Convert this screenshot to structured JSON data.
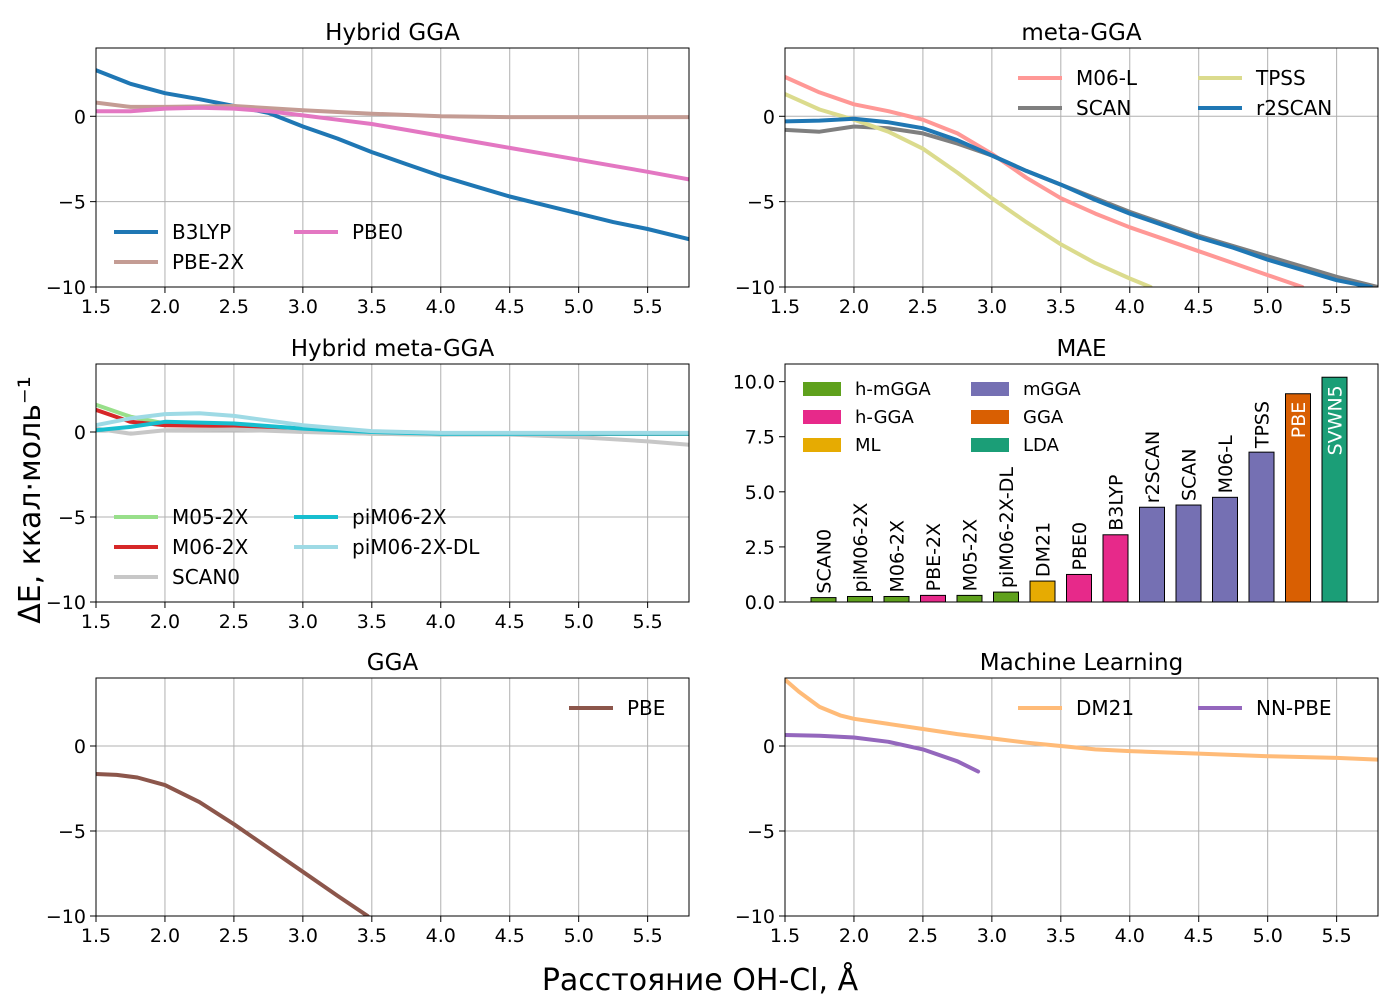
{
  "figure": {
    "xlabel": "Расстояние OH-Cl, Å",
    "ylabel": "ΔE, ккал·моль⁻¹"
  },
  "chart_data": [
    {
      "type": "line",
      "title": "Hybrid GGA",
      "xlim": [
        1.5,
        5.8
      ],
      "ylim": [
        -10,
        4
      ],
      "xticks": [
        "1.5",
        "2.0",
        "2.5",
        "3.0",
        "3.5",
        "4.0",
        "4.5",
        "5.0",
        "5.5"
      ],
      "yticks": [
        "−10",
        "−5",
        "0"
      ],
      "grid": true,
      "legend": {
        "placement": "lower-left",
        "columns": 2
      },
      "series": [
        {
          "name": "B3LYP",
          "color": "#1f77b4",
          "x": [
            1.5,
            1.75,
            2.0,
            2.25,
            2.5,
            2.75,
            3.0,
            3.25,
            3.5,
            3.75,
            4.0,
            4.25,
            4.5,
            4.75,
            5.0,
            5.25,
            5.5,
            5.8
          ],
          "y": [
            2.7,
            1.9,
            1.35,
            1.0,
            0.6,
            0.2,
            -0.6,
            -1.3,
            -2.1,
            -2.8,
            -3.5,
            -4.1,
            -4.7,
            -5.2,
            -5.7,
            -6.2,
            -6.6,
            -7.2
          ]
        },
        {
          "name": "PBE-2X",
          "color": "#c49c94",
          "x": [
            1.5,
            1.75,
            2.0,
            2.5,
            3.0,
            3.5,
            4.0,
            4.5,
            5.0,
            5.5,
            5.8
          ],
          "y": [
            0.8,
            0.55,
            0.55,
            0.6,
            0.35,
            0.15,
            0.0,
            -0.05,
            -0.05,
            -0.05,
            -0.05
          ]
        },
        {
          "name": "PBE0",
          "color": "#e377c2",
          "x": [
            1.5,
            1.75,
            2.0,
            2.25,
            2.5,
            2.75,
            3.0,
            3.25,
            3.5,
            3.75,
            4.0,
            4.25,
            4.5,
            4.75,
            5.0,
            5.25,
            5.5,
            5.8
          ],
          "y": [
            0.3,
            0.3,
            0.45,
            0.5,
            0.45,
            0.3,
            0.05,
            -0.2,
            -0.45,
            -0.8,
            -1.15,
            -1.5,
            -1.85,
            -2.2,
            -2.55,
            -2.9,
            -3.25,
            -3.7
          ]
        }
      ]
    },
    {
      "type": "line",
      "title": "meta-GGA",
      "xlim": [
        1.5,
        5.8
      ],
      "ylim": [
        -10,
        4
      ],
      "xticks": [
        "1.5",
        "2.0",
        "2.5",
        "3.0",
        "3.5",
        "4.0",
        "4.5",
        "5.0",
        "5.5"
      ],
      "yticks": [
        "−10",
        "−5",
        "0"
      ],
      "grid": true,
      "legend": {
        "placement": "top-right",
        "columns": 2
      },
      "series": [
        {
          "name": "M06-L",
          "color": "#ff9896",
          "x": [
            1.5,
            1.75,
            2.0,
            2.25,
            2.5,
            2.75,
            3.0,
            3.25,
            3.5,
            3.75,
            4.0,
            4.25,
            4.5,
            4.75,
            5.0,
            5.25
          ],
          "y": [
            2.3,
            1.4,
            0.7,
            0.3,
            -0.2,
            -1.0,
            -2.2,
            -3.6,
            -4.8,
            -5.7,
            -6.5,
            -7.2,
            -7.9,
            -8.6,
            -9.3,
            -10.0
          ]
        },
        {
          "name": "SCAN",
          "color": "#7f7f7f",
          "x": [
            1.5,
            1.75,
            2.0,
            2.25,
            2.5,
            2.75,
            3.0,
            3.25,
            3.5,
            3.75,
            4.0,
            4.25,
            4.5,
            4.75,
            5.0,
            5.25,
            5.5,
            5.8
          ],
          "y": [
            -0.8,
            -0.9,
            -0.6,
            -0.7,
            -1.0,
            -1.6,
            -2.3,
            -3.2,
            -4.0,
            -4.8,
            -5.6,
            -6.3,
            -7.0,
            -7.6,
            -8.2,
            -8.8,
            -9.4,
            -10.0
          ]
        },
        {
          "name": "TPSS",
          "color": "#dbdb8d",
          "x": [
            1.5,
            1.75,
            2.0,
            2.25,
            2.5,
            2.75,
            3.0,
            3.25,
            3.5,
            3.75,
            4.0,
            4.15
          ],
          "y": [
            1.3,
            0.4,
            -0.2,
            -0.9,
            -1.9,
            -3.3,
            -4.8,
            -6.2,
            -7.5,
            -8.6,
            -9.5,
            -10.0
          ]
        },
        {
          "name": "r2SCAN",
          "color": "#1f77b4",
          "x": [
            1.5,
            1.75,
            2.0,
            2.25,
            2.5,
            2.75,
            3.0,
            3.25,
            3.5,
            3.75,
            4.0,
            4.25,
            4.5,
            4.75,
            5.0,
            5.25,
            5.5,
            5.75
          ],
          "y": [
            -0.3,
            -0.25,
            -0.15,
            -0.35,
            -0.7,
            -1.4,
            -2.3,
            -3.2,
            -4.0,
            -4.9,
            -5.7,
            -6.4,
            -7.1,
            -7.7,
            -8.4,
            -9.0,
            -9.6,
            -10.0
          ]
        }
      ]
    },
    {
      "type": "line",
      "title": "Hybrid meta-GGA",
      "xlim": [
        1.5,
        5.8
      ],
      "ylim": [
        -10,
        4
      ],
      "xticks": [
        "1.5",
        "2.0",
        "2.5",
        "3.0",
        "3.5",
        "4.0",
        "4.5",
        "5.0",
        "5.5"
      ],
      "yticks": [
        "−10",
        "−5",
        "0"
      ],
      "grid": true,
      "legend": {
        "placement": "lower-left",
        "columns": 2
      },
      "series": [
        {
          "name": "M05-2X",
          "color": "#98df8a",
          "x": [
            1.5,
            1.75,
            2.0,
            2.5,
            3.0,
            3.5,
            4.0,
            4.5,
            5.0,
            5.5,
            5.8
          ],
          "y": [
            1.6,
            0.9,
            0.5,
            0.3,
            0.05,
            -0.1,
            -0.15,
            -0.1,
            -0.1,
            -0.1,
            -0.1
          ]
        },
        {
          "name": "M06-2X",
          "color": "#d62728",
          "x": [
            1.5,
            1.75,
            2.0,
            2.5,
            3.0,
            3.5,
            4.0,
            4.5,
            5.0,
            5.5,
            5.8
          ],
          "y": [
            1.3,
            0.6,
            0.4,
            0.35,
            0.1,
            -0.05,
            -0.1,
            -0.1,
            -0.1,
            -0.1,
            -0.1
          ]
        },
        {
          "name": "SCAN0",
          "color": "#c7c7c7",
          "x": [
            1.5,
            1.75,
            2.0,
            2.5,
            3.0,
            3.5,
            4.0,
            4.5,
            5.0,
            5.5,
            5.8
          ],
          "y": [
            0.2,
            -0.1,
            0.1,
            0.15,
            0.0,
            -0.1,
            -0.15,
            -0.15,
            -0.3,
            -0.55,
            -0.75
          ]
        },
        {
          "name": "piM06-2X",
          "color": "#17becf",
          "x": [
            1.5,
            1.75,
            2.0,
            2.5,
            3.0,
            3.5,
            4.0,
            4.5,
            5.0,
            5.5,
            5.8
          ],
          "y": [
            0.1,
            0.3,
            0.6,
            0.5,
            0.2,
            0.0,
            -0.1,
            -0.1,
            -0.1,
            -0.1,
            -0.1
          ]
        },
        {
          "name": "piM06-2X-DL",
          "color": "#9edae5",
          "x": [
            1.5,
            1.75,
            2.0,
            2.25,
            2.5,
            3.0,
            3.5,
            4.0,
            4.5,
            5.0,
            5.5,
            5.8
          ],
          "y": [
            0.4,
            0.8,
            1.05,
            1.1,
            0.95,
            0.4,
            0.05,
            -0.05,
            -0.05,
            -0.05,
            -0.05,
            -0.05
          ]
        }
      ]
    },
    {
      "type": "bar",
      "title": "MAE",
      "ylim": [
        0,
        10.8
      ],
      "yticks": [
        "0.0",
        "2.5",
        "5.0",
        "7.5",
        "10.0"
      ],
      "grid": false,
      "legend": {
        "placement": "top-left",
        "columns": 2
      },
      "legend_entries": [
        {
          "name": "h-mGGA",
          "color": "#5fa11d"
        },
        {
          "name": "mGGA",
          "color": "#7570b3"
        },
        {
          "name": "h-GGA",
          "color": "#e7298a"
        },
        {
          "name": "GGA",
          "color": "#d95f02"
        },
        {
          "name": "ML",
          "color": "#e6ab02"
        },
        {
          "name": "LDA",
          "color": "#1b9e77"
        }
      ],
      "categories": [
        "SCAN0",
        "piM06-2X",
        "M06-2X",
        "PBE-2X",
        "M05-2X",
        "piM06-2X-DL",
        "DM21",
        "PBE0",
        "B3LYP",
        "r2SCAN",
        "SCAN",
        "M06-L",
        "TPSS",
        "PBE",
        "SVWN5"
      ],
      "values": [
        0.2,
        0.25,
        0.25,
        0.3,
        0.3,
        0.45,
        0.95,
        1.25,
        3.05,
        4.3,
        4.4,
        4.75,
        6.8,
        9.45,
        10.2
      ],
      "groups": [
        "h-mGGA",
        "h-mGGA",
        "h-mGGA",
        "h-GGA",
        "h-mGGA",
        "h-mGGA",
        "ML",
        "h-GGA",
        "h-GGA",
        "mGGA",
        "mGGA",
        "mGGA",
        "mGGA",
        "GGA",
        "LDA"
      ]
    },
    {
      "type": "line",
      "title": "GGA",
      "xlim": [
        1.5,
        5.8
      ],
      "ylim": [
        -10,
        4
      ],
      "xticks": [
        "1.5",
        "2.0",
        "2.5",
        "3.0",
        "3.5",
        "4.0",
        "4.5",
        "5.0",
        "5.5"
      ],
      "yticks": [
        "−10",
        "−5",
        "0"
      ],
      "grid": true,
      "legend": {
        "placement": "top-right",
        "columns": 1
      },
      "series": [
        {
          "name": "PBE",
          "color": "#8c564b",
          "x": [
            1.5,
            1.65,
            1.8,
            2.0,
            2.25,
            2.5,
            2.75,
            3.0,
            3.25,
            3.47
          ],
          "y": [
            -1.65,
            -1.7,
            -1.85,
            -2.3,
            -3.3,
            -4.6,
            -6.0,
            -7.4,
            -8.8,
            -10.0
          ]
        }
      ]
    },
    {
      "type": "line",
      "title": "Machine Learning",
      "xlim": [
        1.5,
        5.8
      ],
      "ylim": [
        -10,
        4
      ],
      "xticks": [
        "1.5",
        "2.0",
        "2.5",
        "3.0",
        "3.5",
        "4.0",
        "4.5",
        "5.0",
        "5.5"
      ],
      "yticks": [
        "−10",
        "−5",
        "0"
      ],
      "grid": true,
      "legend": {
        "placement": "top-right",
        "columns": 2
      },
      "series": [
        {
          "name": "DM21",
          "color": "#ffbb78",
          "x": [
            1.5,
            1.6,
            1.75,
            1.9,
            2.0,
            2.25,
            2.5,
            2.75,
            3.0,
            3.25,
            3.5,
            3.75,
            4.0,
            4.5,
            5.0,
            5.5,
            5.8
          ],
          "y": [
            3.9,
            3.2,
            2.3,
            1.8,
            1.6,
            1.3,
            1.0,
            0.7,
            0.45,
            0.2,
            0.0,
            -0.2,
            -0.3,
            -0.45,
            -0.6,
            -0.7,
            -0.8
          ]
        },
        {
          "name": "NN-PBE",
          "color": "#9467bd",
          "x": [
            1.5,
            1.75,
            2.0,
            2.25,
            2.5,
            2.75,
            2.9
          ],
          "y": [
            0.65,
            0.6,
            0.5,
            0.25,
            -0.2,
            -0.9,
            -1.5
          ]
        }
      ]
    }
  ]
}
